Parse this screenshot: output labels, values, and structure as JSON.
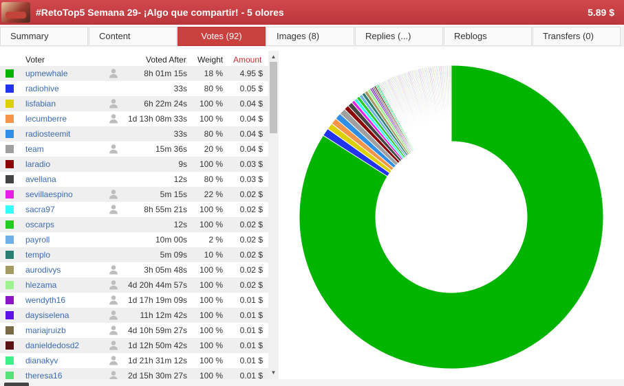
{
  "header": {
    "title": "#RetoTop5 Semana 29- ¡Algo que compartir! - 5 olores",
    "payout": "5.89 $"
  },
  "tabs": [
    {
      "label": "Summary"
    },
    {
      "label": "Content"
    },
    {
      "label": "Votes (92)"
    },
    {
      "label": "Images (8)"
    },
    {
      "label": "Replies (...)"
    },
    {
      "label": "Reblogs"
    },
    {
      "label": "Transfers (0)"
    }
  ],
  "table": {
    "headers": {
      "voter": "Voter",
      "voted_after": "Voted After",
      "weight": "Weight",
      "amount": "Amount"
    },
    "rows": [
      {
        "voter": "upmewhale",
        "color": "#00b400",
        "user_icon": true,
        "voted_after": "8h 01m 15s",
        "weight": "18 %",
        "amount": "4.95 $"
      },
      {
        "voter": "radiohive",
        "color": "#2233ee",
        "user_icon": false,
        "voted_after": "33s",
        "weight": "80 %",
        "amount": "0.05 $"
      },
      {
        "voter": "lisfabian",
        "color": "#dcd000",
        "user_icon": true,
        "voted_after": "6h 22m 24s",
        "weight": "100 %",
        "amount": "0.04 $"
      },
      {
        "voter": "lecumberre",
        "color": "#f5954a",
        "user_icon": true,
        "voted_after": "1d 13h 08m 33s",
        "weight": "100 %",
        "amount": "0.04 $"
      },
      {
        "voter": "radiosteemit",
        "color": "#2e8ee8",
        "user_icon": false,
        "voted_after": "33s",
        "weight": "80 %",
        "amount": "0.04 $"
      },
      {
        "voter": "team",
        "color": "#a0a0a0",
        "user_icon": true,
        "voted_after": "15m 36s",
        "weight": "20 %",
        "amount": "0.04 $"
      },
      {
        "voter": "laradio",
        "color": "#8b0000",
        "user_icon": false,
        "voted_after": "9s",
        "weight": "100 %",
        "amount": "0.03 $"
      },
      {
        "voter": "avellana",
        "color": "#444444",
        "user_icon": false,
        "voted_after": "12s",
        "weight": "80 %",
        "amount": "0.03 $"
      },
      {
        "voter": "sevillaespino",
        "color": "#e61ee6",
        "user_icon": true,
        "voted_after": "5m 15s",
        "weight": "22 %",
        "amount": "0.02 $"
      },
      {
        "voter": "sacra97",
        "color": "#33ffff",
        "user_icon": true,
        "voted_after": "8h 55m 21s",
        "weight": "100 %",
        "amount": "0.02 $"
      },
      {
        "voter": "oscarps",
        "color": "#22cc22",
        "user_icon": false,
        "voted_after": "12s",
        "weight": "100 %",
        "amount": "0.02 $"
      },
      {
        "voter": "payroll",
        "color": "#6fb0e8",
        "user_icon": false,
        "voted_after": "10m 00s",
        "weight": "2 %",
        "amount": "0.02 $"
      },
      {
        "voter": "templo",
        "color": "#2a7f72",
        "user_icon": false,
        "voted_after": "5m 09s",
        "weight": "10 %",
        "amount": "0.02 $"
      },
      {
        "voter": "aurodivys",
        "color": "#a59a62",
        "user_icon": true,
        "voted_after": "3h 05m 48s",
        "weight": "100 %",
        "amount": "0.02 $"
      },
      {
        "voter": "hlezama",
        "color": "#9ef28f",
        "user_icon": true,
        "voted_after": "4d 20h 44m 57s",
        "weight": "100 %",
        "amount": "0.02 $"
      },
      {
        "voter": "wendyth16",
        "color": "#8a16c8",
        "user_icon": true,
        "voted_after": "1d 17h 19m 09s",
        "weight": "100 %",
        "amount": "0.01 $"
      },
      {
        "voter": "daysiselena",
        "color": "#5a12e6",
        "user_icon": true,
        "voted_after": "11h 12m 42s",
        "weight": "100 %",
        "amount": "0.01 $"
      },
      {
        "voter": "mariajruizb",
        "color": "#7a6a48",
        "user_icon": true,
        "voted_after": "4d 10h 59m 27s",
        "weight": "100 %",
        "amount": "0.01 $"
      },
      {
        "voter": "danieldedosd2",
        "color": "#5a1414",
        "user_icon": true,
        "voted_after": "1d 12h 50m 42s",
        "weight": "100 %",
        "amount": "0.01 $"
      },
      {
        "voter": "dianakyv",
        "color": "#3ef08a",
        "user_icon": true,
        "voted_after": "1d 21h 31m 12s",
        "weight": "100 %",
        "amount": "0.01 $"
      },
      {
        "voter": "theresa16",
        "color": "#55e07a",
        "user_icon": true,
        "voted_after": "2d 15h 30m 27s",
        "weight": "100 %",
        "amount": "0.01 $"
      }
    ]
  },
  "chart_data": {
    "type": "pie",
    "donut": true,
    "legend": "none",
    "slices": [
      {
        "label": "upmewhale",
        "value": 4.95,
        "color": "#00b400"
      },
      {
        "label": "radiohive",
        "value": 0.05,
        "color": "#2233ee"
      },
      {
        "label": "lisfabian",
        "value": 0.04,
        "color": "#dcd000"
      },
      {
        "label": "lecumberre",
        "value": 0.04,
        "color": "#f5954a"
      },
      {
        "label": "radiosteemit",
        "value": 0.04,
        "color": "#2e8ee8"
      },
      {
        "label": "team",
        "value": 0.04,
        "color": "#a0a0a0"
      },
      {
        "label": "laradio",
        "value": 0.03,
        "color": "#8b0000"
      },
      {
        "label": "avellana",
        "value": 0.03,
        "color": "#444444"
      },
      {
        "label": "sevillaespino",
        "value": 0.02,
        "color": "#e61ee6"
      },
      {
        "label": "sacra97",
        "value": 0.02,
        "color": "#33ffff"
      },
      {
        "label": "oscarps",
        "value": 0.02,
        "color": "#22cc22"
      },
      {
        "label": "payroll",
        "value": 0.02,
        "color": "#6fb0e8"
      },
      {
        "label": "templo",
        "value": 0.02,
        "color": "#2a7f72"
      },
      {
        "label": "aurodivys",
        "value": 0.02,
        "color": "#a59a62"
      },
      {
        "label": "hlezama",
        "value": 0.02,
        "color": "#9ef28f"
      },
      {
        "label": "wendyth16",
        "value": 0.01,
        "color": "#8a16c8"
      },
      {
        "label": "daysiselena",
        "value": 0.01,
        "color": "#5a12e6"
      },
      {
        "label": "mariajruizb",
        "value": 0.01,
        "color": "#7a6a48"
      },
      {
        "label": "danieldedosd2",
        "value": 0.01,
        "color": "#5a1414"
      },
      {
        "label": "dianakyv",
        "value": 0.01,
        "color": "#3ef08a"
      },
      {
        "label": "theresa16",
        "value": 0.01,
        "color": "#55e07a"
      }
    ]
  }
}
